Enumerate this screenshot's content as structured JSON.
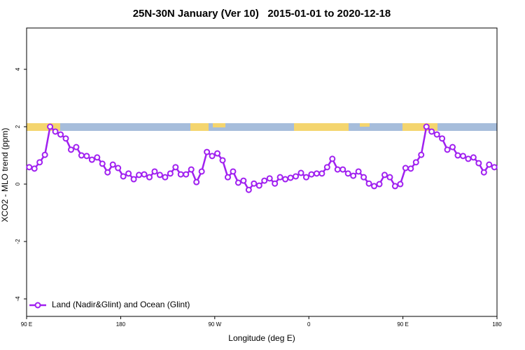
{
  "chart_data": {
    "type": "line",
    "title": "25N-30N January (Ver 10)   2015-01-01 to 2020-12-18",
    "x_label": "Longitude (deg E)",
    "y_label": "XCO2 - MLO trend (ppm)",
    "x": [
      92.5,
      97.5,
      102.5,
      107.5,
      112.5,
      117.5,
      122.5,
      127.5,
      132.5,
      137.5,
      142.5,
      147.5,
      152.5,
      157.5,
      162.5,
      167.5,
      172.5,
      177.5,
      182.5,
      187.5,
      192.5,
      197.5,
      202.5,
      207.5,
      212.5,
      217.5,
      222.5,
      227.5,
      232.5,
      237.5,
      242.5,
      247.5,
      252.5,
      257.5,
      262.5,
      267.5,
      272.5,
      277.5,
      282.5,
      287.5,
      292.5,
      297.5,
      302.5,
      307.5,
      312.5,
      317.5,
      322.5,
      327.5,
      332.5,
      337.5,
      342.5,
      347.5,
      352.5,
      357.5,
      362.5,
      367.5,
      372.5,
      377.5,
      382.5,
      387.5,
      392.5,
      397.5,
      402.5,
      407.5,
      412.5,
      417.5,
      422.5,
      427.5,
      432.5,
      437.5,
      442.5,
      447.5,
      452.5,
      457.5,
      462.5,
      467.5,
      472.5,
      477.5,
      482.5,
      487.5,
      492.5,
      497.5,
      502.5,
      507.5,
      512.5,
      517.5,
      522.5,
      527.5,
      532.5,
      537.5
    ],
    "series": [
      {
        "name": "Land (Nadir&Glint) and Ocean (Glint)",
        "color": "#a020f0",
        "values": [
          0.59,
          0.54,
          0.76,
          1.02,
          2.0,
          1.83,
          1.73,
          1.59,
          1.2,
          1.29,
          1.0,
          0.98,
          0.85,
          0.93,
          0.71,
          0.41,
          0.68,
          0.56,
          0.27,
          0.37,
          0.17,
          0.32,
          0.34,
          0.24,
          0.44,
          0.32,
          0.24,
          0.37,
          0.59,
          0.34,
          0.34,
          0.51,
          0.07,
          0.44,
          1.12,
          0.98,
          1.07,
          0.83,
          0.24,
          0.44,
          0.05,
          0.12,
          -0.2,
          0.02,
          -0.05,
          0.12,
          0.2,
          0.02,
          0.24,
          0.17,
          0.22,
          0.27,
          0.39,
          0.24,
          0.34,
          0.37,
          0.37,
          0.59,
          0.88,
          0.51,
          0.51,
          0.37,
          0.29,
          0.44,
          0.24,
          0.02,
          -0.07,
          0,
          0.32,
          0.24,
          -0.07,
          0,
          0.56,
          0.54,
          0.76,
          1.02,
          2.0,
          1.83,
          1.73,
          1.59,
          1.2,
          1.29,
          1.0,
          0.98,
          0.88,
          0.93,
          0.73,
          0.41,
          0.68,
          0.59
        ]
      }
    ],
    "xlim": [
      90,
      540
    ],
    "xticks": [
      {
        "value": 90,
        "label": "90 E"
      },
      180,
      {
        "value": 270,
        "label": "90 W"
      },
      {
        "value": 360,
        "label": "0"
      },
      {
        "value": 450,
        "label": "90 E"
      },
      {
        "value": 540,
        "label": "180"
      }
    ],
    "ylim": [
      -4.61,
      5.44
    ],
    "yticks": [
      -4,
      -2,
      0,
      2,
      4
    ],
    "legend": "bottom-left"
  }
}
